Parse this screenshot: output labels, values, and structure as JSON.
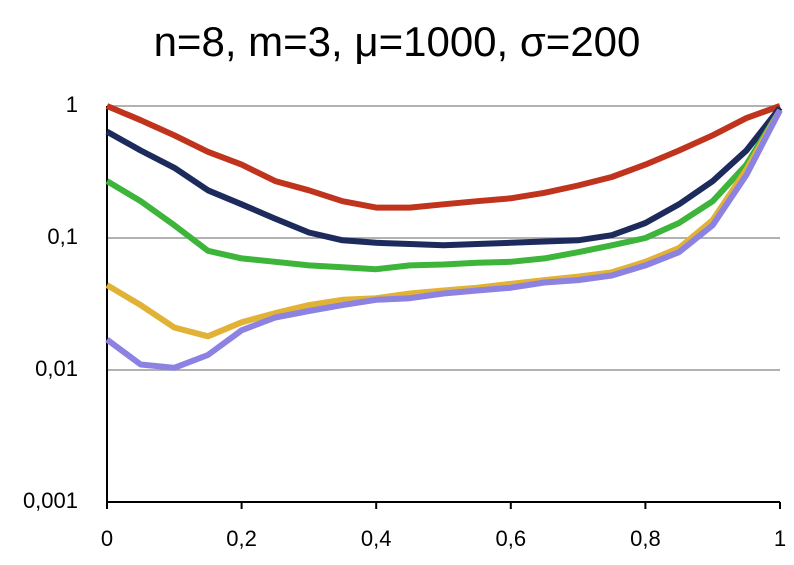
{
  "chart_data": {
    "type": "line",
    "title": "n=8, m=3, μ=1000, σ=200",
    "x": [
      0,
      0.05,
      0.1,
      0.15,
      0.2,
      0.25,
      0.3,
      0.35,
      0.4,
      0.45,
      0.5,
      0.55,
      0.6,
      0.65,
      0.7,
      0.75,
      0.8,
      0.85,
      0.9,
      0.95,
      1
    ],
    "series": [
      {
        "color": "#c0341d",
        "values": [
          1,
          0.78,
          0.6,
          0.45,
          0.36,
          0.27,
          0.23,
          0.19,
          0.17,
          0.17,
          0.18,
          0.19,
          0.2,
          0.22,
          0.25,
          0.29,
          0.36,
          0.46,
          0.6,
          0.81,
          1
        ]
      },
      {
        "color": "#1c2a5c",
        "values": [
          0.64,
          0.46,
          0.34,
          0.23,
          0.18,
          0.14,
          0.11,
          0.096,
          0.092,
          0.09,
          0.088,
          0.09,
          0.092,
          0.094,
          0.096,
          0.105,
          0.13,
          0.18,
          0.27,
          0.46,
          0.97
        ]
      },
      {
        "color": "#3db53a",
        "values": [
          0.27,
          0.19,
          0.125,
          0.08,
          0.07,
          0.066,
          0.062,
          0.06,
          0.058,
          0.062,
          0.063,
          0.065,
          0.066,
          0.07,
          0.078,
          0.088,
          0.1,
          0.13,
          0.19,
          0.36,
          0.93
        ]
      },
      {
        "color": "#e2b236",
        "values": [
          0.044,
          0.031,
          0.021,
          0.018,
          0.023,
          0.027,
          0.031,
          0.034,
          0.035,
          0.038,
          0.04,
          0.042,
          0.045,
          0.048,
          0.051,
          0.055,
          0.066,
          0.084,
          0.137,
          0.33,
          0.93
        ]
      },
      {
        "color": "#8c82e2",
        "values": [
          0.017,
          0.011,
          0.0104,
          0.013,
          0.02,
          0.025,
          0.028,
          0.031,
          0.034,
          0.035,
          0.038,
          0.04,
          0.042,
          0.046,
          0.048,
          0.052,
          0.062,
          0.078,
          0.125,
          0.3,
          0.93
        ]
      }
    ],
    "xlim": [
      0,
      1
    ],
    "xticks": [
      0,
      {
        "value": 0.2,
        "label": "0,2"
      },
      {
        "value": 0.4,
        "label": "0,4"
      },
      {
        "value": 0.6,
        "label": "0,6"
      },
      {
        "value": 0.8,
        "label": "0,8"
      },
      1
    ],
    "ylim": [
      0.001,
      1
    ],
    "ylog": true,
    "yticks": [
      {
        "value": 0.001,
        "label": "0,001"
      },
      {
        "value": 0.01,
        "label": "0,01"
      },
      {
        "value": 0.1,
        "label": "0,1"
      },
      1
    ],
    "grid": true
  }
}
